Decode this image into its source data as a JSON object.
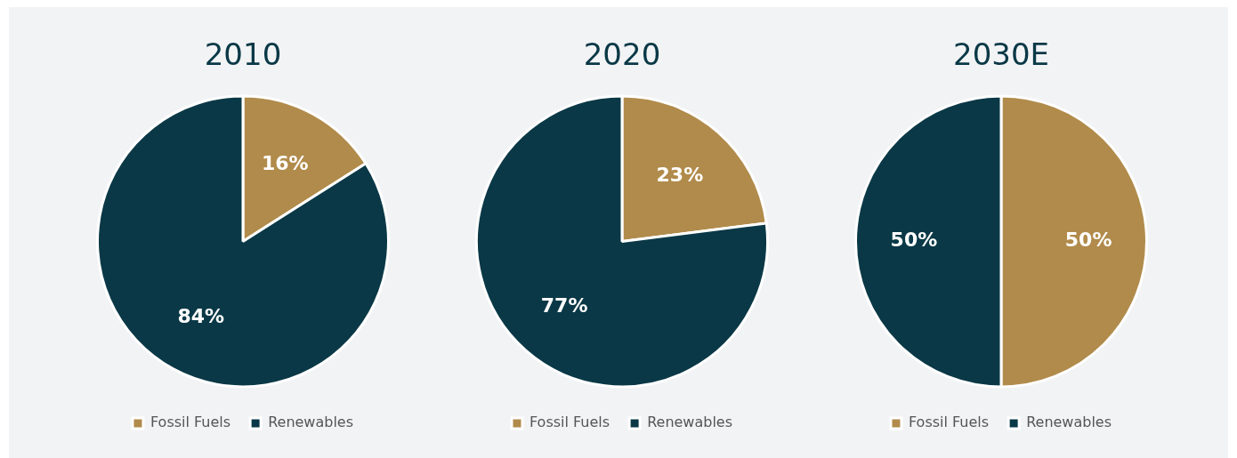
{
  "chart_data": [
    {
      "type": "pie",
      "title": "2010",
      "categories": [
        "Fossil Fuels",
        "Renewables"
      ],
      "values": [
        16,
        84
      ],
      "colors": [
        "#b18b4b",
        "#0a3846"
      ],
      "value_labels": [
        "16%",
        "84%"
      ],
      "legend": "bottom"
    },
    {
      "type": "pie",
      "title": "2020",
      "categories": [
        "Fossil Fuels",
        "Renewables"
      ],
      "values": [
        23,
        77
      ],
      "colors": [
        "#b18b4b",
        "#0a3846"
      ],
      "value_labels": [
        "23%",
        "77%"
      ],
      "legend": "bottom"
    },
    {
      "type": "pie",
      "title": "2030E",
      "categories": [
        "Fossil Fuels",
        "Renewables"
      ],
      "values": [
        50,
        50
      ],
      "colors": [
        "#b18b4b",
        "#0a3846"
      ],
      "value_labels": [
        "50%",
        "50%"
      ],
      "legend": "bottom"
    }
  ]
}
